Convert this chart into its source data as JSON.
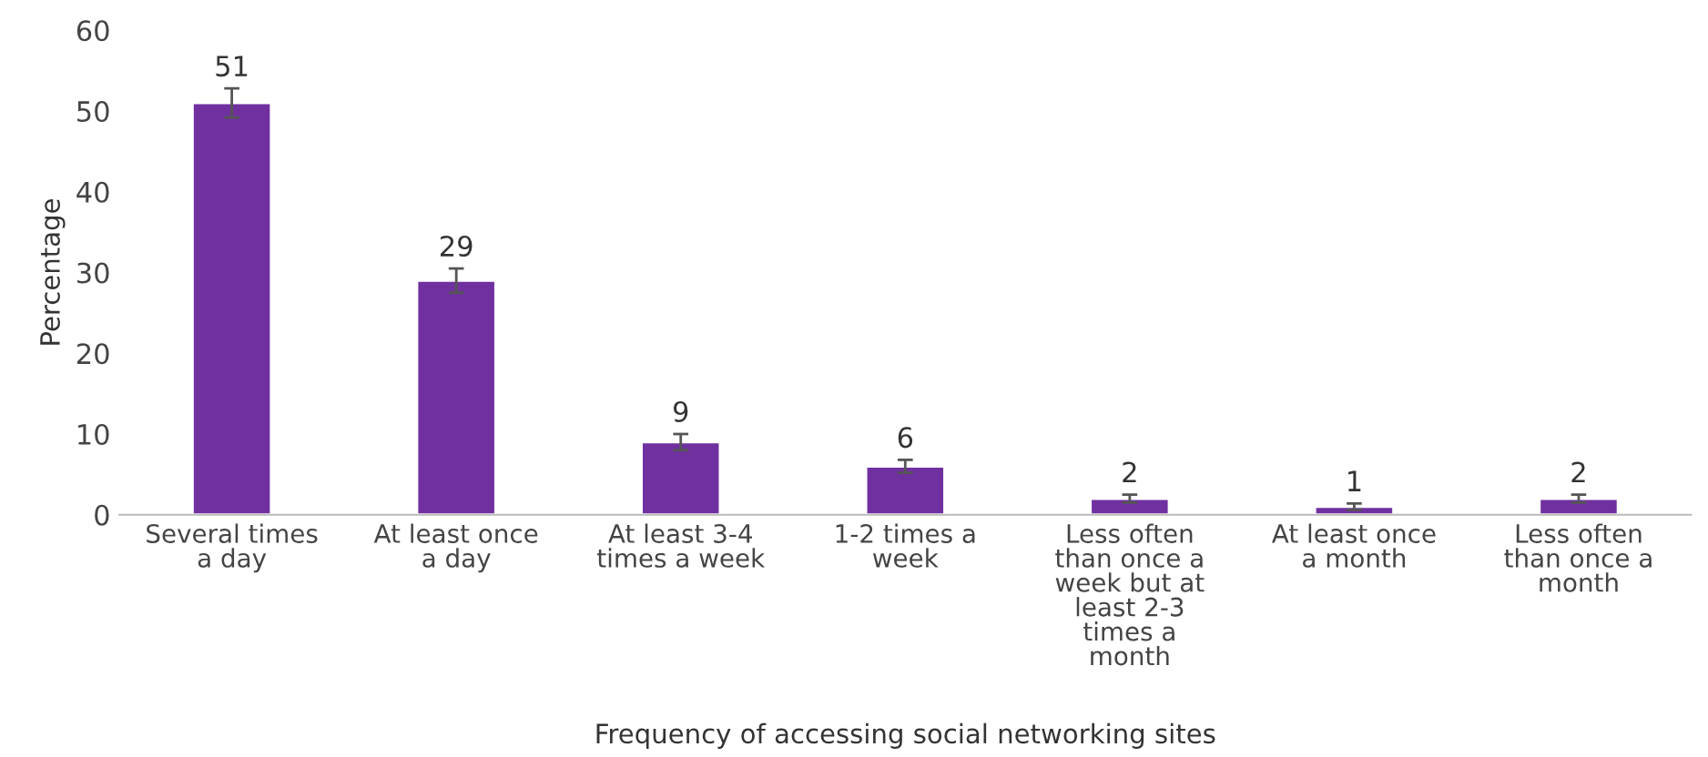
{
  "chart_data": {
    "type": "bar",
    "xlabel": "Frequency of accessing social networking sites",
    "ylabel": "Percentage",
    "categories": [
      "Several times\na day",
      "At least once\na day",
      "At least 3-4\ntimes a week",
      "1-2 times a\nweek",
      "Less often\nthan once a\nweek but at\nleast 2-3\ntimes a\nmonth",
      "At least once\na month",
      "Less often\nthan once a\nmonth"
    ],
    "values": [
      51,
      29,
      9,
      6,
      2,
      1,
      2
    ],
    "errors": [
      1.8,
      1.5,
      1,
      0.8,
      0.5,
      0.4,
      0.5
    ],
    "color": "#7030a0",
    "data_labels": true,
    "ylim": [
      0,
      60
    ],
    "yticks": [
      0,
      10,
      20,
      30,
      40,
      50,
      60
    ],
    "grid": false,
    "legend": false
  }
}
